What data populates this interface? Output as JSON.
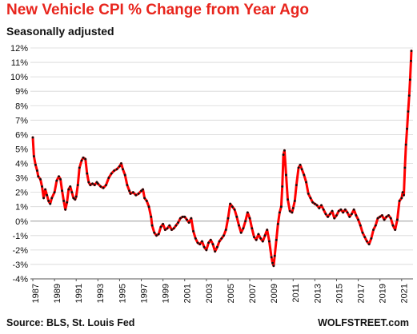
{
  "chart_data": {
    "type": "line",
    "title": "New Vehicle CPI % Change from Year Ago",
    "subtitle": "Seasonally adjusted",
    "xlabel": "",
    "ylabel": "",
    "ylim": [
      -4,
      12
    ],
    "xlim": [
      1987,
      2021.9
    ],
    "y_tick_labels": [
      "-4%",
      "-3%",
      "-2%",
      "-1%",
      "0%",
      "1%",
      "2%",
      "3%",
      "4%",
      "5%",
      "6%",
      "7%",
      "8%",
      "9%",
      "10%",
      "11%",
      "12%"
    ],
    "x_tick_labels": [
      "1987",
      "1989",
      "1991",
      "1993",
      "1995",
      "1997",
      "1999",
      "2001",
      "2003",
      "2005",
      "2007",
      "2009",
      "2011",
      "2013",
      "2015",
      "2017",
      "2019",
      "2021"
    ],
    "grid": "horizontal",
    "line_color": "#ff0000",
    "marker_color": "#111111",
    "series": [
      {
        "points": [
          [
            1987.0,
            5.8
          ],
          [
            1987.1,
            4.5
          ],
          [
            1987.25,
            3.9
          ],
          [
            1987.4,
            3.5
          ],
          [
            1987.5,
            3.1
          ],
          [
            1987.7,
            2.9
          ],
          [
            1987.85,
            2.4
          ],
          [
            1988.0,
            1.6
          ],
          [
            1988.15,
            2.2
          ],
          [
            1988.3,
            1.8
          ],
          [
            1988.45,
            1.4
          ],
          [
            1988.6,
            1.2
          ],
          [
            1988.75,
            1.6
          ],
          [
            1989.0,
            2.0
          ],
          [
            1989.2,
            2.8
          ],
          [
            1989.4,
            3.1
          ],
          [
            1989.55,
            2.9
          ],
          [
            1989.7,
            2.1
          ],
          [
            1989.85,
            1.4
          ],
          [
            1990.0,
            0.8
          ],
          [
            1990.15,
            1.3
          ],
          [
            1990.3,
            2.2
          ],
          [
            1990.45,
            2.4
          ],
          [
            1990.6,
            2.0
          ],
          [
            1990.75,
            1.6
          ],
          [
            1990.9,
            1.5
          ],
          [
            1991.0,
            1.7
          ],
          [
            1991.15,
            2.5
          ],
          [
            1991.3,
            3.7
          ],
          [
            1991.5,
            4.2
          ],
          [
            1991.65,
            4.4
          ],
          [
            1991.85,
            4.3
          ],
          [
            1992.0,
            3.3
          ],
          [
            1992.15,
            2.7
          ],
          [
            1992.3,
            2.5
          ],
          [
            1992.5,
            2.6
          ],
          [
            1992.7,
            2.5
          ],
          [
            1992.9,
            2.7
          ],
          [
            1993.0,
            2.6
          ],
          [
            1993.25,
            2.4
          ],
          [
            1993.5,
            2.3
          ],
          [
            1993.75,
            2.5
          ],
          [
            1994.0,
            3.0
          ],
          [
            1994.25,
            3.3
          ],
          [
            1994.5,
            3.5
          ],
          [
            1994.75,
            3.6
          ],
          [
            1995.0,
            3.8
          ],
          [
            1995.15,
            4.0
          ],
          [
            1995.3,
            3.6
          ],
          [
            1995.5,
            3.2
          ],
          [
            1995.7,
            2.5
          ],
          [
            1995.9,
            2.1
          ],
          [
            1996.0,
            1.9
          ],
          [
            1996.25,
            2.0
          ],
          [
            1996.5,
            1.8
          ],
          [
            1996.75,
            1.9
          ],
          [
            1997.0,
            2.1
          ],
          [
            1997.15,
            2.2
          ],
          [
            1997.3,
            1.6
          ],
          [
            1997.5,
            1.4
          ],
          [
            1997.7,
            1.0
          ],
          [
            1997.9,
            0.3
          ],
          [
            1998.0,
            -0.3
          ],
          [
            1998.2,
            -0.8
          ],
          [
            1998.4,
            -1.0
          ],
          [
            1998.6,
            -0.9
          ],
          [
            1998.8,
            -0.4
          ],
          [
            1999.0,
            -0.2
          ],
          [
            1999.2,
            -0.6
          ],
          [
            1999.4,
            -0.5
          ],
          [
            1999.6,
            -0.3
          ],
          [
            1999.8,
            -0.6
          ],
          [
            2000.0,
            -0.5
          ],
          [
            2000.2,
            -0.3
          ],
          [
            2000.4,
            -0.1
          ],
          [
            2000.6,
            0.2
          ],
          [
            2000.8,
            0.3
          ],
          [
            2001.0,
            0.3
          ],
          [
            2001.2,
            0.1
          ],
          [
            2001.4,
            -0.1
          ],
          [
            2001.6,
            0.2
          ],
          [
            2001.8,
            -0.7
          ],
          [
            2002.0,
            -1.2
          ],
          [
            2002.2,
            -1.5
          ],
          [
            2002.4,
            -1.6
          ],
          [
            2002.6,
            -1.4
          ],
          [
            2002.8,
            -1.8
          ],
          [
            2003.0,
            -2.0
          ],
          [
            2003.2,
            -1.5
          ],
          [
            2003.4,
            -1.3
          ],
          [
            2003.6,
            -1.6
          ],
          [
            2003.8,
            -2.1
          ],
          [
            2004.0,
            -1.8
          ],
          [
            2004.2,
            -1.4
          ],
          [
            2004.4,
            -1.2
          ],
          [
            2004.6,
            -1.0
          ],
          [
            2004.8,
            -0.6
          ],
          [
            2005.0,
            0.2
          ],
          [
            2005.2,
            1.2
          ],
          [
            2005.4,
            1.0
          ],
          [
            2005.6,
            0.8
          ],
          [
            2005.8,
            0.3
          ],
          [
            2006.0,
            -0.3
          ],
          [
            2006.2,
            -0.8
          ],
          [
            2006.4,
            -0.5
          ],
          [
            2006.6,
            0.0
          ],
          [
            2006.8,
            0.6
          ],
          [
            2007.0,
            0.2
          ],
          [
            2007.2,
            -0.5
          ],
          [
            2007.4,
            -1.1
          ],
          [
            2007.6,
            -1.3
          ],
          [
            2007.8,
            -0.9
          ],
          [
            2008.0,
            -1.2
          ],
          [
            2008.2,
            -1.4
          ],
          [
            2008.4,
            -1.0
          ],
          [
            2008.6,
            -0.6
          ],
          [
            2008.8,
            -1.4
          ],
          [
            2009.0,
            -2.5
          ],
          [
            2009.1,
            -2.9
          ],
          [
            2009.2,
            -3.1
          ],
          [
            2009.3,
            -2.4
          ],
          [
            2009.45,
            -1.3
          ],
          [
            2009.6,
            -0.2
          ],
          [
            2009.75,
            0.6
          ],
          [
            2009.9,
            1.0
          ],
          [
            2010.0,
            2.4
          ],
          [
            2010.1,
            4.6
          ],
          [
            2010.2,
            4.9
          ],
          [
            2010.35,
            3.2
          ],
          [
            2010.5,
            1.5
          ],
          [
            2010.7,
            0.7
          ],
          [
            2010.9,
            0.6
          ],
          [
            2011.0,
            0.9
          ],
          [
            2011.15,
            1.4
          ],
          [
            2011.3,
            2.5
          ],
          [
            2011.5,
            3.7
          ],
          [
            2011.65,
            3.9
          ],
          [
            2011.8,
            3.6
          ],
          [
            2012.0,
            3.2
          ],
          [
            2012.2,
            2.7
          ],
          [
            2012.4,
            1.9
          ],
          [
            2012.6,
            1.6
          ],
          [
            2012.8,
            1.3
          ],
          [
            2013.0,
            1.2
          ],
          [
            2013.2,
            1.1
          ],
          [
            2013.4,
            0.9
          ],
          [
            2013.6,
            1.1
          ],
          [
            2013.8,
            0.8
          ],
          [
            2014.0,
            0.5
          ],
          [
            2014.2,
            0.3
          ],
          [
            2014.4,
            0.5
          ],
          [
            2014.6,
            0.7
          ],
          [
            2014.8,
            0.2
          ],
          [
            2015.0,
            0.4
          ],
          [
            2015.2,
            0.7
          ],
          [
            2015.4,
            0.8
          ],
          [
            2015.6,
            0.6
          ],
          [
            2015.8,
            0.8
          ],
          [
            2016.0,
            0.6
          ],
          [
            2016.2,
            0.3
          ],
          [
            2016.4,
            0.5
          ],
          [
            2016.6,
            0.8
          ],
          [
            2016.8,
            0.4
          ],
          [
            2017.0,
            0.1
          ],
          [
            2017.2,
            -0.3
          ],
          [
            2017.4,
            -0.8
          ],
          [
            2017.6,
            -1.1
          ],
          [
            2017.8,
            -1.4
          ],
          [
            2018.0,
            -1.6
          ],
          [
            2018.2,
            -1.2
          ],
          [
            2018.4,
            -0.6
          ],
          [
            2018.6,
            -0.3
          ],
          [
            2018.8,
            0.2
          ],
          [
            2019.0,
            0.3
          ],
          [
            2019.2,
            0.4
          ],
          [
            2019.4,
            0.1
          ],
          [
            2019.6,
            0.3
          ],
          [
            2019.8,
            0.4
          ],
          [
            2020.0,
            0.2
          ],
          [
            2020.2,
            -0.3
          ],
          [
            2020.4,
            -0.6
          ],
          [
            2020.6,
            0.1
          ],
          [
            2020.8,
            1.4
          ],
          [
            2021.0,
            1.6
          ],
          [
            2021.1,
            2.0
          ],
          [
            2021.2,
            1.8
          ],
          [
            2021.3,
            3.7
          ],
          [
            2021.4,
            5.3
          ],
          [
            2021.5,
            6.4
          ],
          [
            2021.6,
            7.6
          ],
          [
            2021.7,
            8.7
          ],
          [
            2021.78,
            9.8
          ],
          [
            2021.86,
            11.1
          ],
          [
            2021.9,
            11.8
          ]
        ]
      }
    ]
  },
  "footer": {
    "source": "Source: BLS, St. Louis Fed",
    "brand": "WOLFSTREET.com"
  }
}
